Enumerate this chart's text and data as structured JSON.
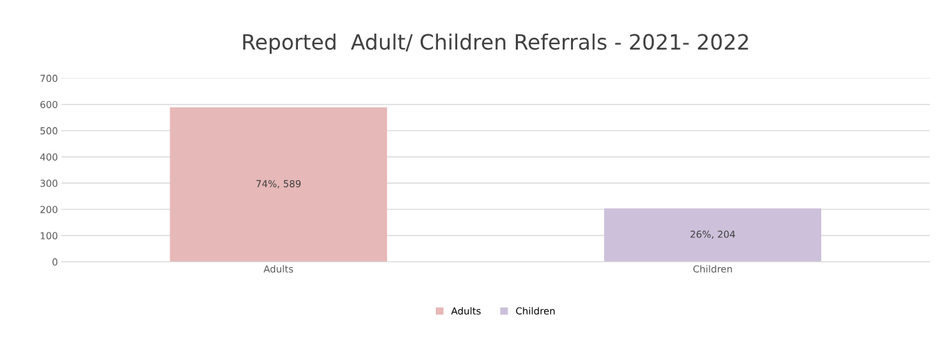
{
  "chart_data": {
    "type": "bar",
    "title": "Reported  Adult/ Children Referrals - 2021- 2022",
    "categories": [
      "Adults",
      "Children"
    ],
    "series": [
      {
        "name": "Adults",
        "color": "#e6b8b7",
        "values": [
          589,
          null
        ],
        "value_labels": [
          "74%, 589",
          null
        ]
      },
      {
        "name": "Children",
        "color": "#ccc0da",
        "values": [
          null,
          204
        ],
        "value_labels": [
          null,
          "26%, 204"
        ]
      }
    ],
    "ylim": [
      0,
      700
    ],
    "yticks": [
      0,
      100,
      200,
      300,
      400,
      500,
      600,
      700
    ],
    "grid": "y",
    "legend": "bottom"
  }
}
